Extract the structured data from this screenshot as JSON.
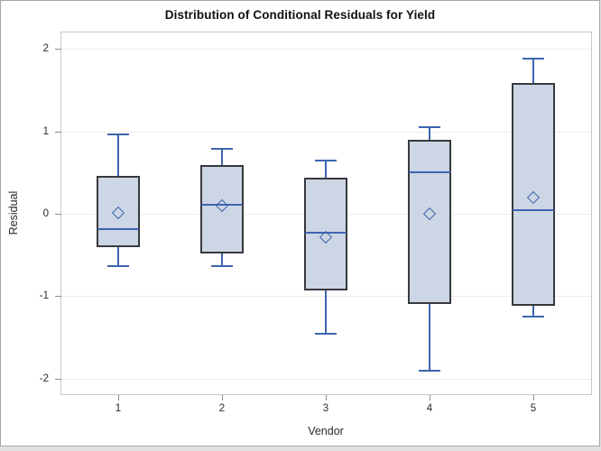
{
  "chart_data": {
    "type": "boxplot",
    "title": "Distribution of Conditional Residuals for Yield",
    "xlabel": "Vendor",
    "ylabel": "Residual",
    "categories": [
      "1",
      "2",
      "3",
      "4",
      "5"
    ],
    "y_ticks": [
      2,
      1,
      0,
      -1,
      -2
    ],
    "ylim": [
      -2.19,
      2.2
    ],
    "grid": true,
    "legend": "none",
    "series": [
      {
        "category": "1",
        "whisker_low": -0.63,
        "q1": -0.41,
        "median": -0.19,
        "q3": 0.46,
        "whisker_high": 0.96,
        "mean": 0.01
      },
      {
        "category": "2",
        "whisker_low": -0.63,
        "q1": -0.48,
        "median": 0.11,
        "q3": 0.59,
        "whisker_high": 0.79,
        "mean": 0.1
      },
      {
        "category": "3",
        "whisker_low": -1.46,
        "q1": -0.93,
        "median": -0.23,
        "q3": 0.44,
        "whisker_high": 0.64,
        "mean": -0.28
      },
      {
        "category": "4",
        "whisker_low": -1.91,
        "q1": -1.1,
        "median": 0.5,
        "q3": 0.9,
        "whisker_high": 1.05,
        "mean": 0.0
      },
      {
        "category": "5",
        "whisker_low": -1.25,
        "q1": -1.12,
        "median": 0.04,
        "q3": 1.59,
        "whisker_high": 1.88,
        "mean": 0.2
      }
    ],
    "colors": {
      "box_fill": "#cdd6e5",
      "box_border": "#37393d",
      "line_blue": "#3d64ae",
      "gridline": "#ececec",
      "frame_border": "#c9c9c9",
      "tick_mark": "#8f8f8f",
      "text": "#2a2a2a"
    }
  }
}
